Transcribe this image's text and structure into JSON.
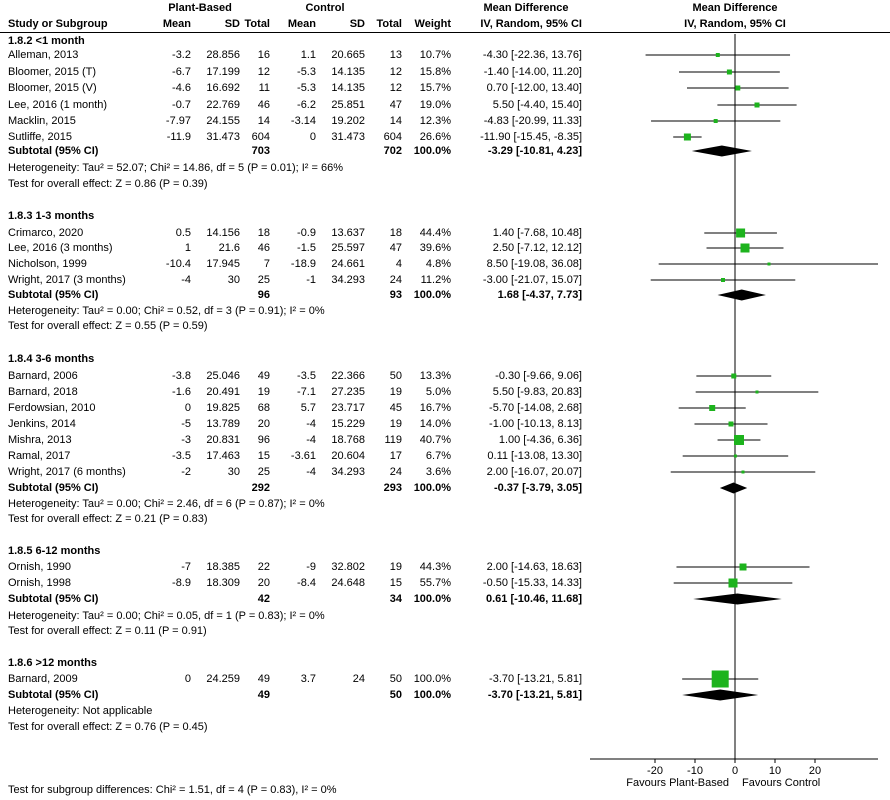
{
  "header": {
    "study_col": "Study or Subgroup",
    "group1": "Plant-Based",
    "group2": "Control",
    "effect_col_title": "Mean Difference",
    "effect_col_sub": "IV, Random, 95% CI",
    "plot_title": "Mean Difference",
    "plot_sub": "IV, Random, 95% CI",
    "sub_mean1": "Mean",
    "sub_sd1": "SD",
    "sub_total1": "Total",
    "sub_mean2": "Mean",
    "sub_sd2": "SD",
    "sub_total2": "Total",
    "sub_weight": "Weight"
  },
  "footer": "Test for subgroup differences: Chi² = 1.51, df = 4 (P = 0.83), I² = 0%",
  "colors": {
    "square": "#1db31d",
    "diamond": "#000000",
    "line": "#000000",
    "text": "#000000"
  },
  "chart_data": {
    "type": "forest",
    "effect_measure": "Mean Difference, IV, Random, 95% CI",
    "axis": {
      "ticks": [
        -20,
        -10,
        0,
        10,
        20
      ],
      "tick_labels": [
        "-20",
        "-10",
        "0",
        "10",
        "20"
      ],
      "xlim": [
        -36.25,
        35.75
      ],
      "favours_left": "Favours Plant-Based",
      "favours_right": "Favours Control"
    },
    "groups": [
      {
        "label": "1.8.2 <1 month",
        "studies": [
          {
            "name": "Alleman, 2013",
            "m1": "-3.2",
            "sd1": "28.856",
            "n1": "16",
            "m2": "1.1",
            "sd2": "20.665",
            "n2": "13",
            "w": "10.7%",
            "ci": "-4.30 [-22.36, 13.76]",
            "est": -4.3,
            "lo": -22.36,
            "hi": 13.76,
            "sq": 4
          },
          {
            "name": "Bloomer, 2015 (T)",
            "m1": "-6.7",
            "sd1": "17.199",
            "n1": "12",
            "m2": "-5.3",
            "sd2": "14.135",
            "n2": "12",
            "w": "15.8%",
            "ci": "-1.40 [-14.00, 11.20]",
            "est": -1.4,
            "lo": -14.0,
            "hi": 11.2,
            "sq": 5
          },
          {
            "name": "Bloomer, 2015 (V)",
            "m1": "-4.6",
            "sd1": "16.692",
            "n1": "11",
            "m2": "-5.3",
            "sd2": "14.135",
            "n2": "12",
            "w": "15.7%",
            "ci": "0.70 [-12.00, 13.40]",
            "est": 0.7,
            "lo": -12.0,
            "hi": 13.4,
            "sq": 5
          },
          {
            "name": "Lee, 2016 (1 month)",
            "m1": "-0.7",
            "sd1": "22.769",
            "n1": "46",
            "m2": "-6.2",
            "sd2": "25.851",
            "n2": "47",
            "w": "19.0%",
            "ci": "5.50 [-4.40, 15.40]",
            "est": 5.5,
            "lo": -4.4,
            "hi": 15.4,
            "sq": 5
          },
          {
            "name": "Macklin, 2015",
            "m1": "-7.97",
            "sd1": "24.155",
            "n1": "14",
            "m2": "-3.14",
            "sd2": "19.202",
            "n2": "14",
            "w": "12.3%",
            "ci": "-4.83 [-20.99, 11.33]",
            "est": -4.83,
            "lo": -20.99,
            "hi": 11.33,
            "sq": 4
          },
          {
            "name": "Sutliffe, 2015",
            "m1": "-11.9",
            "sd1": "31.473",
            "n1": "604",
            "m2": "0",
            "sd2": "31.473",
            "n2": "604",
            "w": "26.6%",
            "ci": "-11.90 [-15.45, -8.35]",
            "est": -11.9,
            "lo": -15.45,
            "hi": -8.35,
            "sq": 7
          }
        ],
        "subtotal": {
          "label": "Subtotal (95% CI)",
          "n1": "703",
          "n2": "702",
          "w": "100.0%",
          "ci": "-3.29 [-10.81, 4.23]",
          "est": -3.29,
          "lo": -10.81,
          "hi": 4.23
        },
        "heterogeneity": "Heterogeneity: Tau² = 52.07; Chi² = 14.86, df = 5 (P = 0.01); I² = 66%",
        "overall_test": "Test for overall effect: Z = 0.86 (P = 0.39)"
      },
      {
        "label": "1.8.3 1-3 months",
        "studies": [
          {
            "name": "Crimarco, 2020",
            "m1": "0.5",
            "sd1": "14.156",
            "n1": "18",
            "m2": "-0.9",
            "sd2": "13.637",
            "n2": "18",
            "w": "44.4%",
            "ci": "1.40 [-7.68, 10.48]",
            "est": 1.4,
            "lo": -7.68,
            "hi": 10.48,
            "sq": 9
          },
          {
            "name": "Lee, 2016 (3 months)",
            "m1": "1",
            "sd1": "21.6",
            "n1": "46",
            "m2": "-1.5",
            "sd2": "25.597",
            "n2": "47",
            "w": "39.6%",
            "ci": "2.50 [-7.12, 12.12]",
            "est": 2.5,
            "lo": -7.12,
            "hi": 12.12,
            "sq": 9
          },
          {
            "name": "Nicholson, 1999",
            "m1": "-10.4",
            "sd1": "17.945",
            "n1": "7",
            "m2": "-18.9",
            "sd2": "24.661",
            "n2": "4",
            "w": "4.8%",
            "ci": "8.50 [-19.08, 36.08]",
            "est": 8.5,
            "lo": -19.08,
            "hi": 36.08,
            "sq": 3
          },
          {
            "name": "Wright, 2017 (3 months)",
            "m1": "-4",
            "sd1": "30",
            "n1": "25",
            "m2": "-1",
            "sd2": "34.293",
            "n2": "24",
            "w": "11.2%",
            "ci": "-3.00 [-21.07, 15.07]",
            "est": -3.0,
            "lo": -21.07,
            "hi": 15.07,
            "sq": 4
          }
        ],
        "subtotal": {
          "label": "Subtotal (95% CI)",
          "n1": "96",
          "n2": "93",
          "w": "100.0%",
          "ci": "1.68 [-4.37, 7.73]",
          "est": 1.68,
          "lo": -4.37,
          "hi": 7.73
        },
        "heterogeneity": "Heterogeneity: Tau² = 0.00; Chi² = 0.52, df = 3 (P = 0.91); I² = 0%",
        "overall_test": "Test for overall effect: Z = 0.55 (P = 0.59)"
      },
      {
        "label": "1.8.4 3-6 months",
        "studies": [
          {
            "name": "Barnard, 2006",
            "m1": "-3.8",
            "sd1": "25.046",
            "n1": "49",
            "m2": "-3.5",
            "sd2": "22.366",
            "n2": "50",
            "w": "13.3%",
            "ci": "-0.30 [-9.66, 9.06]",
            "est": -0.3,
            "lo": -9.66,
            "hi": 9.06,
            "sq": 5
          },
          {
            "name": "Barnard, 2018",
            "m1": "-1.6",
            "sd1": "20.491",
            "n1": "19",
            "m2": "-7.1",
            "sd2": "27.235",
            "n2": "19",
            "w": "5.0%",
            "ci": "5.50 [-9.83, 20.83]",
            "est": 5.5,
            "lo": -9.83,
            "hi": 20.83,
            "sq": 3
          },
          {
            "name": "Ferdowsian, 2010",
            "m1": "0",
            "sd1": "19.825",
            "n1": "68",
            "m2": "5.7",
            "sd2": "23.717",
            "n2": "45",
            "w": "16.7%",
            "ci": "-5.70 [-14.08, 2.68]",
            "est": -5.7,
            "lo": -14.08,
            "hi": 2.68,
            "sq": 6
          },
          {
            "name": "Jenkins, 2014",
            "m1": "-5",
            "sd1": "13.789",
            "n1": "20",
            "m2": "-4",
            "sd2": "15.229",
            "n2": "19",
            "w": "14.0%",
            "ci": "-1.00 [-10.13, 8.13]",
            "est": -1.0,
            "lo": -10.13,
            "hi": 8.13,
            "sq": 5
          },
          {
            "name": "Mishra, 2013",
            "m1": "-3",
            "sd1": "20.831",
            "n1": "96",
            "m2": "-4",
            "sd2": "18.768",
            "n2": "119",
            "w": "40.7%",
            "ci": "1.00 [-4.36, 6.36]",
            "est": 1.0,
            "lo": -4.36,
            "hi": 6.36,
            "sq": 10
          },
          {
            "name": "Ramal, 2017",
            "m1": "-3.5",
            "sd1": "17.463",
            "n1": "15",
            "m2": "-3.61",
            "sd2": "20.604",
            "n2": "17",
            "w": "6.7%",
            "ci": "0.11 [-13.08, 13.30]",
            "est": 0.11,
            "lo": -13.08,
            "hi": 13.3,
            "sq": 3
          },
          {
            "name": "Wright, 2017 (6 months)",
            "m1": "-2",
            "sd1": "30",
            "n1": "25",
            "m2": "-4",
            "sd2": "34.293",
            "n2": "24",
            "w": "3.6%",
            "ci": "2.00 [-16.07, 20.07]",
            "est": 2.0,
            "lo": -16.07,
            "hi": 20.07,
            "sq": 3
          }
        ],
        "subtotal": {
          "label": "Subtotal (95% CI)",
          "n1": "292",
          "n2": "293",
          "w": "100.0%",
          "ci": "-0.37 [-3.79, 3.05]",
          "est": -0.37,
          "lo": -3.79,
          "hi": 3.05
        },
        "heterogeneity": "Heterogeneity: Tau² = 0.00; Chi² = 2.46, df = 6 (P = 0.87); I² = 0%",
        "overall_test": "Test for overall effect: Z = 0.21 (P = 0.83)"
      },
      {
        "label": "1.8.5 6-12 months",
        "studies": [
          {
            "name": "Ornish, 1990",
            "m1": "-7",
            "sd1": "18.385",
            "n1": "22",
            "m2": "-9",
            "sd2": "32.802",
            "n2": "19",
            "w": "44.3%",
            "ci": "2.00 [-14.63, 18.63]",
            "est": 2.0,
            "lo": -14.63,
            "hi": 18.63,
            "sq": 7
          },
          {
            "name": "Ornish, 1998",
            "m1": "-8.9",
            "sd1": "18.309",
            "n1": "20",
            "m2": "-8.4",
            "sd2": "24.648",
            "n2": "15",
            "w": "55.7%",
            "ci": "-0.50 [-15.33, 14.33]",
            "est": -0.5,
            "lo": -15.33,
            "hi": 14.33,
            "sq": 9
          }
        ],
        "subtotal": {
          "label": "Subtotal (95% CI)",
          "n1": "42",
          "n2": "34",
          "w": "100.0%",
          "ci": "0.61 [-10.46, 11.68]",
          "est": 0.61,
          "lo": -10.46,
          "hi": 11.68
        },
        "heterogeneity": "Heterogeneity: Tau² = 0.00; Chi² = 0.05, df = 1 (P = 0.83); I² = 0%",
        "overall_test": "Test for overall effect: Z = 0.11 (P = 0.91)"
      },
      {
        "label": "1.8.6 >12 months",
        "studies": [
          {
            "name": "Barnard, 2009",
            "m1": "0",
            "sd1": "24.259",
            "n1": "49",
            "m2": "3.7",
            "sd2": "24",
            "n2": "50",
            "w": "100.0%",
            "ci": "-3.70 [-13.21, 5.81]",
            "est": -3.7,
            "lo": -13.21,
            "hi": 5.81,
            "sq": 17
          }
        ],
        "subtotal": {
          "label": "Subtotal (95% CI)",
          "n1": "49",
          "n2": "50",
          "w": "100.0%",
          "ci": "-3.70 [-13.21, 5.81]",
          "est": -3.7,
          "lo": -13.21,
          "hi": 5.81
        },
        "heterogeneity": "Heterogeneity: Not applicable",
        "overall_test": "Test for overall effect: Z = 0.76 (P = 0.45)"
      }
    ]
  }
}
